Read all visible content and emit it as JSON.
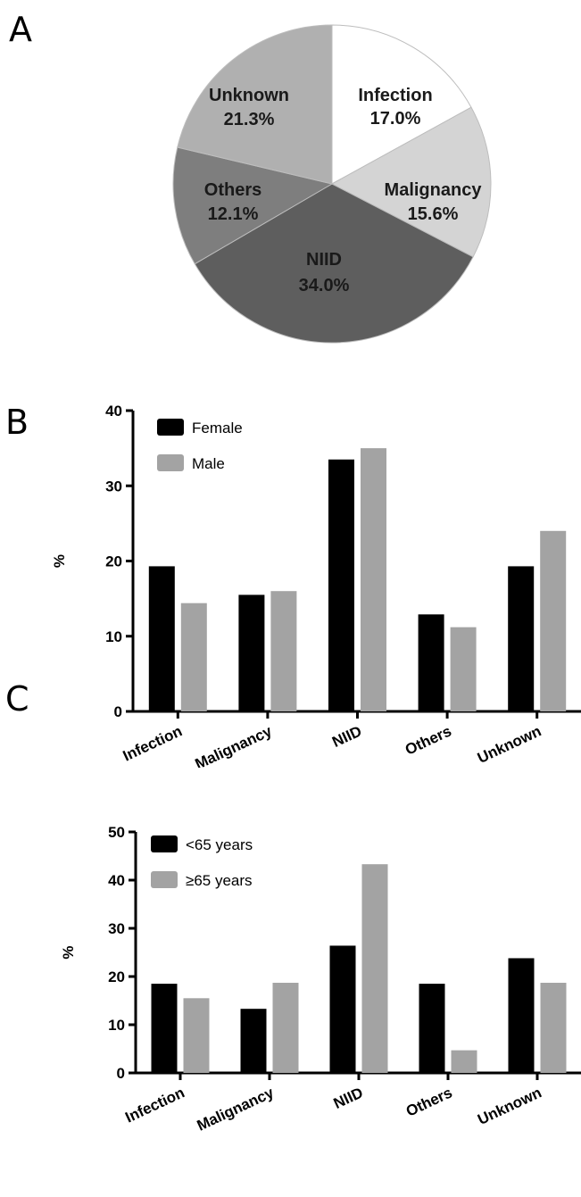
{
  "panels": {
    "a_label": "A",
    "b_label": "B",
    "c_label": "C"
  },
  "chart_data": [
    {
      "type": "pie",
      "slices": [
        {
          "label": "Infection",
          "value": 17.0,
          "value_label": "17.0%",
          "color": "#ffffff"
        },
        {
          "label": "Malignancy",
          "value": 15.6,
          "value_label": "15.6%",
          "color": "#d4d4d4"
        },
        {
          "label": "NIID",
          "value": 34.0,
          "value_label": "34.0%",
          "color": "#5e5e5e"
        },
        {
          "label": "Others",
          "value": 12.1,
          "value_label": "12.1%",
          "color": "#7e7e7e"
        },
        {
          "label": "Unknown",
          "value": 21.3,
          "value_label": "21.3%",
          "color": "#b0b0b0"
        }
      ],
      "start_angle": "12 o'clock, clockwise"
    },
    {
      "type": "bar",
      "categories": [
        "Infection",
        "Malignancy",
        "NIID",
        "Others",
        "Unknown"
      ],
      "series": [
        {
          "name": "Female",
          "values": [
            19.3,
            15.5,
            33.5,
            12.9,
            19.3
          ],
          "color": "#000000"
        },
        {
          "name": "Male",
          "values": [
            14.4,
            16.0,
            35.0,
            11.2,
            24.0
          ],
          "color": "#a3a3a3"
        }
      ],
      "ylabel": "%",
      "ylim": [
        0,
        40
      ],
      "yticks": [
        0,
        10,
        20,
        30,
        40
      ],
      "legend": "top-left",
      "grid": false
    },
    {
      "type": "bar",
      "categories": [
        "Infection",
        "Malignancy",
        "NIID",
        "Others",
        "Unknown"
      ],
      "series": [
        {
          "name": "<65 years",
          "values": [
            18.5,
            13.3,
            26.4,
            18.5,
            23.8
          ],
          "color": "#000000"
        },
        {
          "name": "≥65 years",
          "values": [
            15.5,
            18.7,
            43.3,
            4.7,
            18.7
          ],
          "color": "#a3a3a3"
        }
      ],
      "ylabel": "%",
      "ylim": [
        0,
        50
      ],
      "yticks": [
        0,
        10,
        20,
        30,
        40,
        50
      ],
      "legend": "top-left",
      "grid": false
    }
  ]
}
